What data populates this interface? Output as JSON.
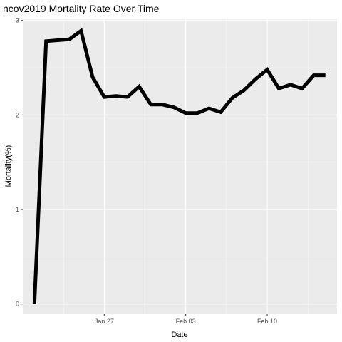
{
  "chart_data": {
    "type": "line",
    "title": "ncov2019 Mortality Rate Over Time",
    "xlabel": "Date",
    "ylabel": "Mortality(%)",
    "x_ticks": [
      "Jan 27",
      "Feb 03",
      "Feb 10"
    ],
    "x_tick_dates": [
      "2020-01-27",
      "2020-02-03",
      "2020-02-10"
    ],
    "x_range": [
      "2020-01-20",
      "2020-02-16"
    ],
    "y_ticks": [
      0,
      1,
      2,
      3
    ],
    "ylim": [
      -0.1,
      3.02
    ],
    "grid": true,
    "legend": "none",
    "colors": {
      "panel_bg": "#ebebeb",
      "grid_major": "#ffffff",
      "line": "#000000",
      "tick_text": "#4d4d4d"
    },
    "series": [
      {
        "x": [
          "2020-01-21",
          "2020-01-22",
          "2020-01-23",
          "2020-01-24",
          "2020-01-25",
          "2020-01-26",
          "2020-01-27",
          "2020-01-28",
          "2020-01-29",
          "2020-01-30",
          "2020-01-31",
          "2020-02-01",
          "2020-02-02",
          "2020-02-03",
          "2020-02-04",
          "2020-02-05",
          "2020-02-06",
          "2020-02-07",
          "2020-02-08",
          "2020-02-09",
          "2020-02-10",
          "2020-02-11",
          "2020-02-12",
          "2020-02-13",
          "2020-02-14",
          "2020-02-15"
        ],
        "y": [
          0.0,
          2.78,
          2.79,
          2.8,
          2.89,
          2.4,
          2.19,
          2.2,
          2.19,
          2.3,
          2.11,
          2.11,
          2.08,
          2.02,
          2.02,
          2.07,
          2.03,
          2.18,
          2.26,
          2.38,
          2.48,
          2.28,
          2.32,
          2.28,
          2.42,
          2.42
        ]
      }
    ]
  }
}
